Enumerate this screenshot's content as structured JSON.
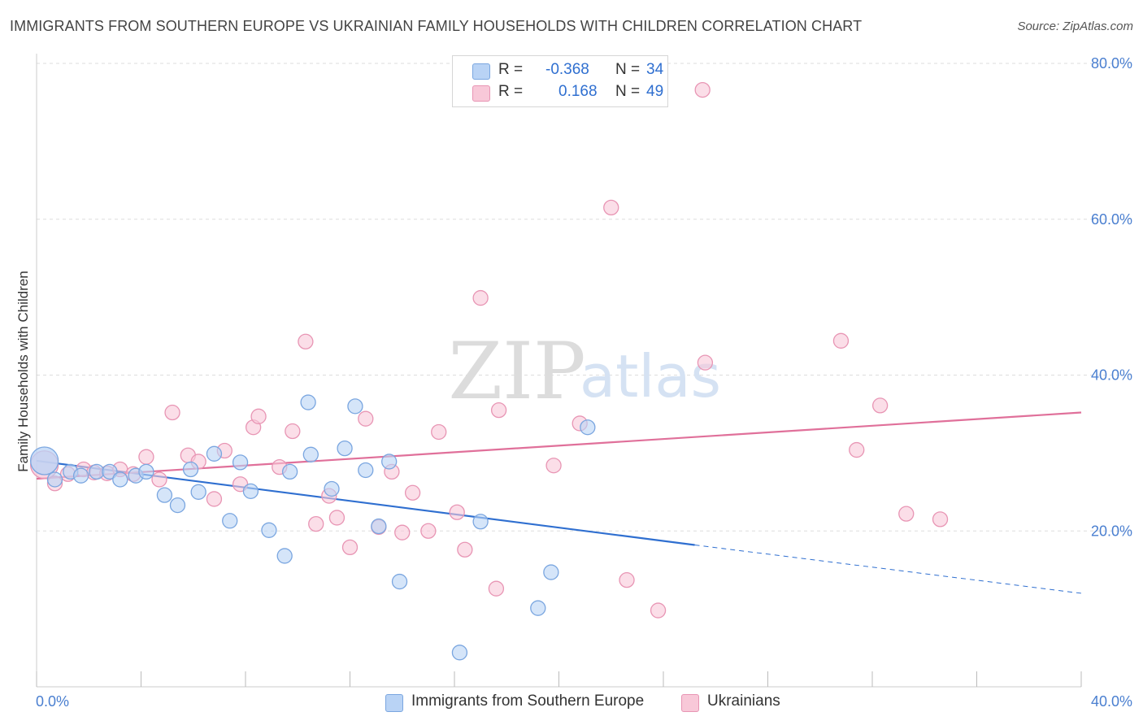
{
  "title": "IMMIGRANTS FROM SOUTHERN EUROPE VS UKRAINIAN FAMILY HOUSEHOLDS WITH CHILDREN CORRELATION CHART",
  "source": "Source: ZipAtlas.com",
  "watermark": {
    "zip": "ZIP",
    "atlas": "atlas"
  },
  "colors": {
    "blue_fill": "#b9d3f5",
    "blue_stroke": "#7aa6e0",
    "blue_line": "#2f6fd0",
    "pink_fill": "#f8c8d8",
    "pink_stroke": "#e895b4",
    "pink_line": "#e0709a",
    "tick_text": "#4a7fd0",
    "grid": "#dddddd"
  },
  "legend": {
    "r_label": "R =",
    "n_label": "N =",
    "blue": {
      "r": "-0.368",
      "n": "34"
    },
    "pink": {
      "r": "0.168",
      "n": "49"
    }
  },
  "chart_data": {
    "type": "scatter",
    "title": "IMMIGRANTS FROM SOUTHERN EUROPE VS UKRAINIAN FAMILY HOUSEHOLDS WITH CHILDREN CORRELATION CHART",
    "xlabel": "",
    "ylabel": "Family Households with Children",
    "xlim": [
      0,
      40
    ],
    "ylim": [
      0,
      80
    ],
    "x_tick_labels": [
      "0.0%",
      "40.0%"
    ],
    "y_ticks": [
      20,
      40,
      60,
      80
    ],
    "y_tick_labels": [
      "20.0%",
      "40.0%",
      "60.0%",
      "80.0%"
    ],
    "grid": true,
    "legend_position": "top-center",
    "series": [
      {
        "name": "Immigrants from Southern Europe",
        "color": "#7aa6e0",
        "r": -0.368,
        "n": 34,
        "trend": {
          "x0": 0,
          "y0": 29.0,
          "x1": 25.2,
          "y1": 18.2,
          "dash_to_x": 40,
          "dash_to_y": 12.0
        },
        "points": [
          [
            0.3,
            29.0
          ],
          [
            0.7,
            26.6
          ],
          [
            1.3,
            27.6
          ],
          [
            1.7,
            27.1
          ],
          [
            2.3,
            27.6
          ],
          [
            2.8,
            27.6
          ],
          [
            3.2,
            26.6
          ],
          [
            3.8,
            27.1
          ],
          [
            4.2,
            27.6
          ],
          [
            4.9,
            24.6
          ],
          [
            5.4,
            23.3
          ],
          [
            5.9,
            27.9
          ],
          [
            6.2,
            25.0
          ],
          [
            6.8,
            29.9
          ],
          [
            7.4,
            21.3
          ],
          [
            7.8,
            28.8
          ],
          [
            8.2,
            25.1
          ],
          [
            8.9,
            20.1
          ],
          [
            9.5,
            16.8
          ],
          [
            9.7,
            27.6
          ],
          [
            10.4,
            36.5
          ],
          [
            10.5,
            29.8
          ],
          [
            11.3,
            25.4
          ],
          [
            11.8,
            30.6
          ],
          [
            12.2,
            36.0
          ],
          [
            12.6,
            27.8
          ],
          [
            13.1,
            20.6
          ],
          [
            13.5,
            28.9
          ],
          [
            13.9,
            13.5
          ],
          [
            16.2,
            4.4
          ],
          [
            17.0,
            21.2
          ],
          [
            19.2,
            10.1
          ],
          [
            19.7,
            14.7
          ],
          [
            21.1,
            33.3
          ]
        ]
      },
      {
        "name": "Ukrainians",
        "color": "#e895b4",
        "r": 0.168,
        "n": 49,
        "trend": {
          "x0": 0,
          "y0": 26.7,
          "x1": 40,
          "y1": 35.2
        },
        "points": [
          [
            0.3,
            28.5
          ],
          [
            0.7,
            26.1
          ],
          [
            1.2,
            27.3
          ],
          [
            1.8,
            27.9
          ],
          [
            2.2,
            27.5
          ],
          [
            2.7,
            27.4
          ],
          [
            3.2,
            27.9
          ],
          [
            3.7,
            27.3
          ],
          [
            4.2,
            29.5
          ],
          [
            4.7,
            26.6
          ],
          [
            5.2,
            35.2
          ],
          [
            5.8,
            29.7
          ],
          [
            6.2,
            28.9
          ],
          [
            6.8,
            24.1
          ],
          [
            7.2,
            30.3
          ],
          [
            7.8,
            26.0
          ],
          [
            8.3,
            33.3
          ],
          [
            8.5,
            34.7
          ],
          [
            9.3,
            28.2
          ],
          [
            9.8,
            32.8
          ],
          [
            10.3,
            44.3
          ],
          [
            10.7,
            20.9
          ],
          [
            11.2,
            24.5
          ],
          [
            11.5,
            21.7
          ],
          [
            12.0,
            17.9
          ],
          [
            12.6,
            34.4
          ],
          [
            13.1,
            20.5
          ],
          [
            13.6,
            27.6
          ],
          [
            14.0,
            19.8
          ],
          [
            14.4,
            24.9
          ],
          [
            15.0,
            20.0
          ],
          [
            15.4,
            32.7
          ],
          [
            16.1,
            22.4
          ],
          [
            16.4,
            17.6
          ],
          [
            17.0,
            49.9
          ],
          [
            17.6,
            12.6
          ],
          [
            17.7,
            35.5
          ],
          [
            19.8,
            28.4
          ],
          [
            20.8,
            33.8
          ],
          [
            22.0,
            61.5
          ],
          [
            22.6,
            13.7
          ],
          [
            23.8,
            9.8
          ],
          [
            25.5,
            76.6
          ],
          [
            25.6,
            41.6
          ],
          [
            30.8,
            44.4
          ],
          [
            31.4,
            30.4
          ],
          [
            32.3,
            36.1
          ],
          [
            33.3,
            22.2
          ],
          [
            34.6,
            21.5
          ]
        ]
      }
    ]
  }
}
